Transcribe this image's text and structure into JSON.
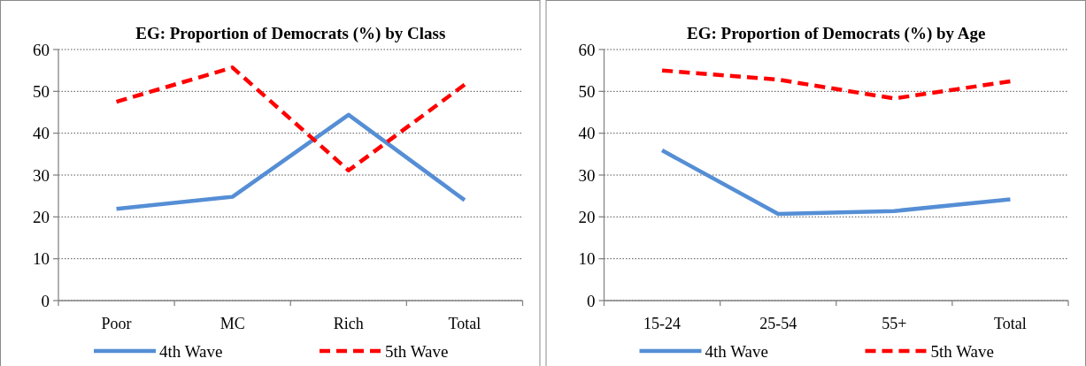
{
  "chart_data": [
    {
      "type": "line",
      "title": "EG: Proportion of Democrats (%) by Class",
      "categories": [
        "Poor",
        "MC",
        "Rich",
        "Total"
      ],
      "ylim": [
        0,
        60
      ],
      "yticks": [
        0,
        10,
        20,
        30,
        40,
        50,
        60
      ],
      "grid": "y",
      "legend": "bottom",
      "marker": "none",
      "series": [
        {
          "name": "4th Wave",
          "color": "#558ed5",
          "line_style": "solid",
          "values": [
            21.9,
            24.8,
            44.4,
            24.0
          ]
        },
        {
          "name": "5th Wave",
          "color": "#ff0000",
          "line_style": "dashed",
          "values": [
            47.5,
            55.7,
            31.1,
            51.6
          ]
        }
      ]
    },
    {
      "type": "line",
      "title": "EG: Proportion of Democrats (%) by Age",
      "categories": [
        "15-24",
        "25-54",
        "55+",
        "Total"
      ],
      "ylim": [
        0,
        60
      ],
      "yticks": [
        0,
        10,
        20,
        30,
        40,
        50,
        60
      ],
      "grid": "y",
      "legend": "bottom",
      "marker": "none",
      "series": [
        {
          "name": "4th Wave",
          "color": "#558ed5",
          "line_style": "solid",
          "values": [
            35.9,
            20.7,
            21.4,
            24.2
          ]
        },
        {
          "name": "5th Wave",
          "color": "#ff0000",
          "line_style": "dashed",
          "values": [
            55.0,
            52.8,
            48.3,
            52.4
          ]
        }
      ]
    }
  ]
}
